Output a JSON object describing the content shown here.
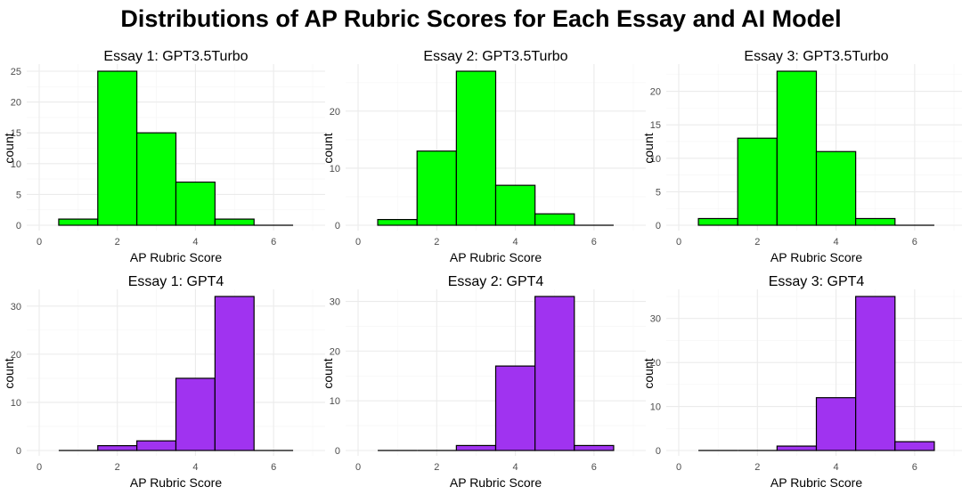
{
  "title": "Distributions of AP Rubric Scores for Each Essay and AI Model",
  "colors": {
    "GPT3.5Turbo": "#00ff00",
    "GPT4": "#a033f0"
  },
  "chart_data": [
    {
      "type": "bar",
      "title": "Essay 1: GPT3.5Turbo",
      "model": "GPT3.5Turbo",
      "xlabel": "AP Rubric Score",
      "ylabel": "count",
      "xlim": [
        0,
        7
      ],
      "ylim": [
        0,
        25
      ],
      "xticks": [
        0,
        2,
        4,
        6
      ],
      "yticks": [
        0,
        5,
        10,
        15,
        20,
        25
      ],
      "bin_width": 1,
      "x": [
        1,
        2,
        3,
        4,
        5,
        6
      ],
      "values": [
        1,
        25,
        15,
        7,
        1,
        0
      ]
    },
    {
      "type": "bar",
      "title": "Essay 2: GPT3.5Turbo",
      "model": "GPT3.5Turbo",
      "xlabel": "AP Rubric Score",
      "ylabel": "count",
      "xlim": [
        0,
        7
      ],
      "ylim": [
        0,
        27
      ],
      "xticks": [
        0,
        2,
        4,
        6
      ],
      "yticks": [
        0,
        10,
        20
      ],
      "bin_width": 1,
      "x": [
        1,
        2,
        3,
        4,
        5,
        6
      ],
      "values": [
        1,
        13,
        27,
        7,
        2,
        0
      ]
    },
    {
      "type": "bar",
      "title": "Essay 3: GPT3.5Turbo",
      "model": "GPT3.5Turbo",
      "xlabel": "AP Rubric Score",
      "ylabel": "count",
      "xlim": [
        0,
        7
      ],
      "ylim": [
        0,
        23
      ],
      "xticks": [
        0,
        2,
        4,
        6
      ],
      "yticks": [
        0,
        5,
        10,
        15,
        20
      ],
      "bin_width": 1,
      "x": [
        1,
        2,
        3,
        4,
        5,
        6
      ],
      "values": [
        1,
        13,
        23,
        11,
        1,
        0
      ]
    },
    {
      "type": "bar",
      "title": "Essay 1: GPT4",
      "model": "GPT4",
      "xlabel": "AP Rubric Score",
      "ylabel": "count",
      "xlim": [
        0,
        7
      ],
      "ylim": [
        0,
        32
      ],
      "xticks": [
        0,
        2,
        4,
        6
      ],
      "yticks": [
        0,
        10,
        20,
        30
      ],
      "bin_width": 1,
      "x": [
        1,
        2,
        3,
        4,
        5,
        6
      ],
      "values": [
        0,
        1,
        2,
        15,
        32,
        0
      ]
    },
    {
      "type": "bar",
      "title": "Essay 2: GPT4",
      "model": "GPT4",
      "xlabel": "AP Rubric Score",
      "ylabel": "count",
      "xlim": [
        0,
        7
      ],
      "ylim": [
        0,
        31
      ],
      "xticks": [
        0,
        2,
        4,
        6
      ],
      "yticks": [
        0,
        10,
        20,
        30
      ],
      "bin_width": 1,
      "x": [
        1,
        2,
        3,
        4,
        5,
        6
      ],
      "values": [
        0,
        0,
        1,
        17,
        31,
        1
      ]
    },
    {
      "type": "bar",
      "title": "Essay 3: GPT4",
      "model": "GPT4",
      "xlabel": "AP Rubric Score",
      "ylabel": "count",
      "xlim": [
        0,
        7
      ],
      "ylim": [
        0,
        35
      ],
      "xticks": [
        0,
        2,
        4,
        6
      ],
      "yticks": [
        0,
        10,
        20,
        30
      ],
      "bin_width": 1,
      "x": [
        1,
        2,
        3,
        4,
        5,
        6
      ],
      "values": [
        0,
        0,
        1,
        12,
        35,
        2
      ]
    }
  ]
}
